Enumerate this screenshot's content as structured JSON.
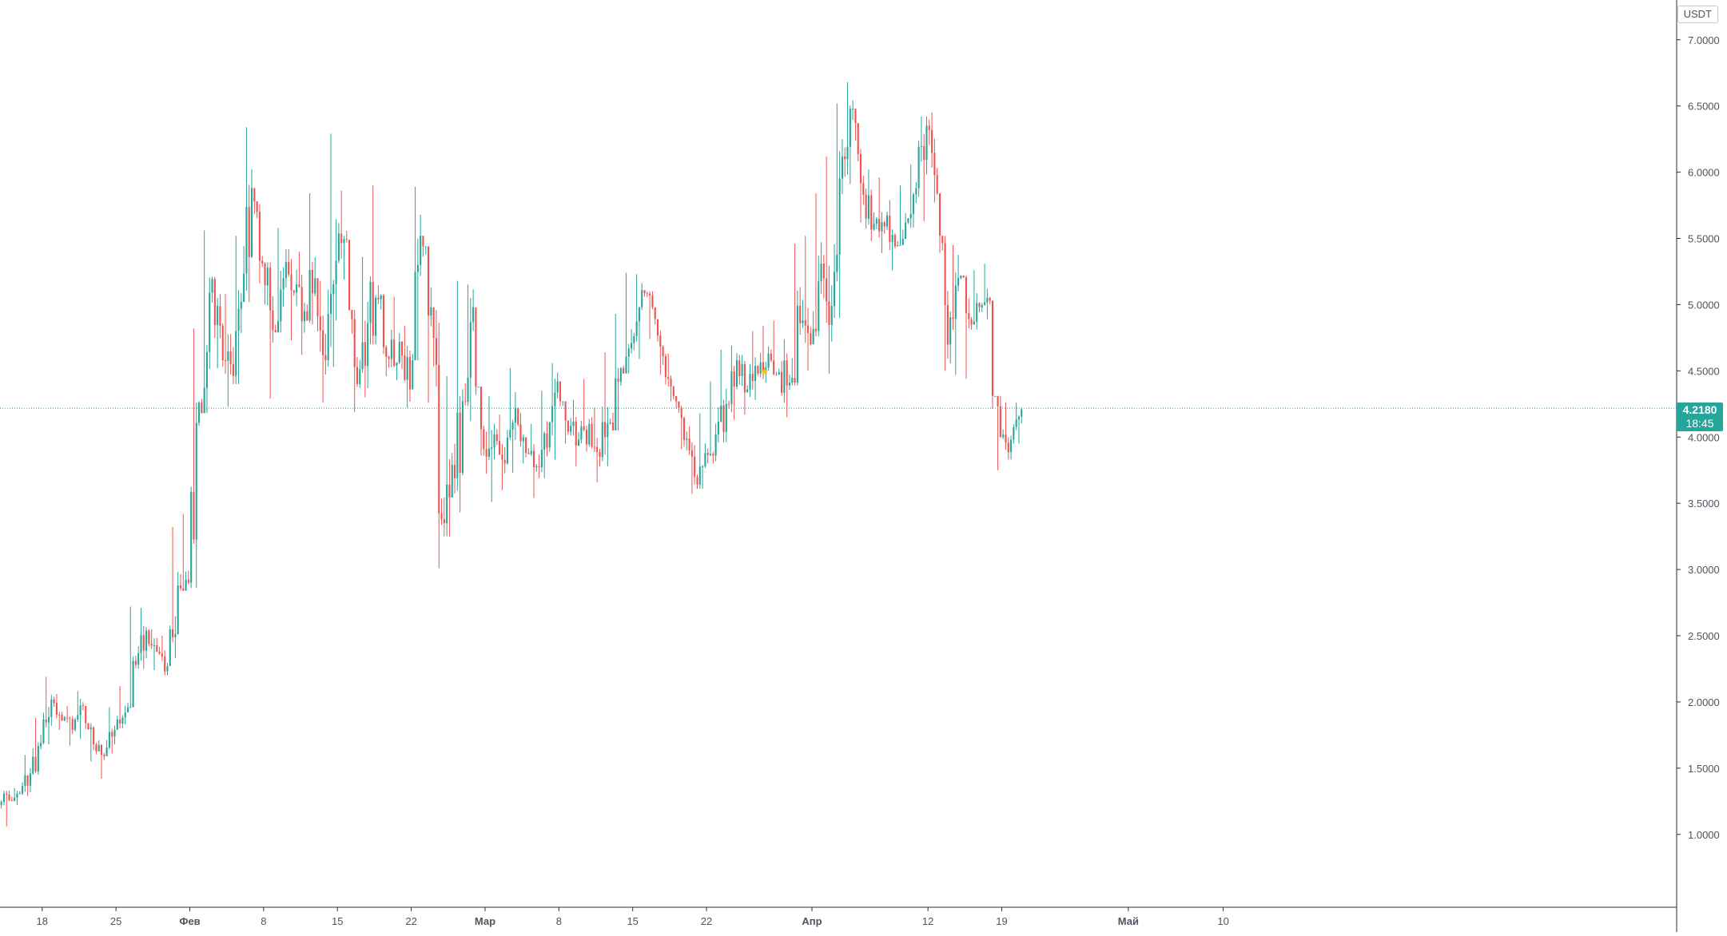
{
  "currency": "USDT",
  "current_price": {
    "label": "4.2180",
    "countdown": "18:45",
    "value": 4.218
  },
  "colors": {
    "up": "#26a69a",
    "down": "#ef5350",
    "axis_text": "#50535e",
    "axis_line": "#2a2e39",
    "price_line": "#26a69a",
    "marker": "#f5c518"
  },
  "chart_data": {
    "type": "candlestick",
    "title": "",
    "xlabel": "",
    "ylabel": "",
    "ylim": [
      0.45,
      7.3
    ],
    "grid": false,
    "y_ticks": [
      "1.0000",
      "1.5000",
      "2.0000",
      "2.5000",
      "3.0000",
      "3.5000",
      "4.0000",
      "4.5000",
      "5.0000",
      "5.5000",
      "6.0000",
      "6.5000",
      "7.0000"
    ],
    "x_ticks": [
      {
        "label": "18",
        "bold": false
      },
      {
        "label": "25",
        "bold": false
      },
      {
        "label": "Фев",
        "bold": true
      },
      {
        "label": "8",
        "bold": false
      },
      {
        "label": "15",
        "bold": false
      },
      {
        "label": "22",
        "bold": false
      },
      {
        "label": "Мар",
        "bold": true
      },
      {
        "label": "8",
        "bold": false
      },
      {
        "label": "15",
        "bold": false
      },
      {
        "label": "22",
        "bold": false
      },
      {
        "label": "Апр",
        "bold": true
      },
      {
        "label": "12",
        "bold": false
      },
      {
        "label": "19",
        "bold": false
      },
      {
        "label": "Май",
        "bold": true
      },
      {
        "label": "10",
        "bold": false
      }
    ],
    "x_tick_day_index": [
      4,
      11,
      18,
      25,
      32,
      39,
      46,
      53,
      60,
      67,
      77,
      88,
      95,
      107,
      116
    ],
    "x_range_days": [
      0,
      159
    ],
    "series": [
      {
        "start": "2021-01-14",
        "day_step": 1,
        "close": [
          1.26,
          1.31,
          1.46,
          1.69,
          2.02,
          1.86,
          1.79,
          1.97,
          1.68,
          1.59,
          1.79,
          1.92,
          2.28,
          2.54,
          2.38,
          2.27,
          2.88,
          2.9,
          4.26,
          5.09,
          4.84,
          4.55,
          5.02,
          5.88,
          5.31,
          4.81,
          5.2,
          5.09,
          4.95,
          5.2,
          4.58,
          5.33,
          5.49,
          4.4,
          4.86,
          5.04,
          4.59,
          4.72,
          4.36,
          5.52,
          4.98,
          3.38,
          3.79,
          4.27,
          4.98,
          3.91,
          4.02,
          3.8,
          4.22,
          3.88,
          3.78,
          3.92,
          4.42,
          4.04,
          3.98,
          4.1,
          3.85,
          4.11,
          4.52,
          4.71,
          5.11,
          4.98,
          4.61,
          4.31,
          3.98,
          3.7,
          3.88,
          4.02,
          4.25,
          4.58,
          4.36,
          4.48,
          4.63,
          4.49,
          4.41,
          4.86,
          4.7,
          5.31,
          4.99,
          6.12,
          6.48,
          5.83,
          5.61,
          5.59,
          5.44,
          5.62,
          5.88,
          6.35,
          5.84,
          4.7,
          5.2,
          4.89,
          4.98,
          5.03,
          4.0,
          3.98,
          4.21
        ],
        "high": [
          1.33,
          1.35,
          1.6,
          1.88,
          2.19,
          2.06,
          1.97,
          2.08,
          1.84,
          1.71,
          1.96,
          2.12,
          2.72,
          2.71,
          2.55,
          2.5,
          3.32,
          3.42,
          4.82,
          5.56,
          5.21,
          5.08,
          5.52,
          6.34,
          5.78,
          5.32,
          5.58,
          5.42,
          5.4,
          5.84,
          5.18,
          6.29,
          5.86,
          4.96,
          5.36,
          5.9,
          5.08,
          5.06,
          4.84,
          5.89,
          5.44,
          4.96,
          4.46,
          5.18,
          5.15,
          4.38,
          4.31,
          4.17,
          4.52,
          4.18,
          4.1,
          4.35,
          4.56,
          4.27,
          4.28,
          4.44,
          4.22,
          4.64,
          4.93,
          5.24,
          5.23,
          5.1,
          4.89,
          4.63,
          4.27,
          4.08,
          4.18,
          4.42,
          4.66,
          4.69,
          4.62,
          4.8,
          4.84,
          4.88,
          4.74,
          5.46,
          5.52,
          5.84,
          6.12,
          6.52,
          6.68,
          6.37,
          6.02,
          5.96,
          5.79,
          5.9,
          6.06,
          6.42,
          6.45,
          5.52,
          5.45,
          5.22,
          5.26,
          5.31,
          4.31,
          4.26,
          4.26
        ],
        "low": [
          1.06,
          1.22,
          1.29,
          1.45,
          1.68,
          1.79,
          1.67,
          1.72,
          1.55,
          1.42,
          1.61,
          1.8,
          1.96,
          2.25,
          2.24,
          2.2,
          2.33,
          2.84,
          2.86,
          4.18,
          4.52,
          4.23,
          4.4,
          5.02,
          5.16,
          4.29,
          4.79,
          4.73,
          4.62,
          4.85,
          4.26,
          4.53,
          5.19,
          4.19,
          4.3,
          4.7,
          4.46,
          4.43,
          4.22,
          4.58,
          4.26,
          3.01,
          3.25,
          3.43,
          4.12,
          3.86,
          3.51,
          3.6,
          3.73,
          3.8,
          3.54,
          3.69,
          3.83,
          3.95,
          3.78,
          3.89,
          3.66,
          3.78,
          4.05,
          4.48,
          4.59,
          4.74,
          4.47,
          4.27,
          3.91,
          3.57,
          3.61,
          3.8,
          3.96,
          4.13,
          4.17,
          4.28,
          4.41,
          4.47,
          4.15,
          4.39,
          4.5,
          4.76,
          4.48,
          4.9,
          5.91,
          5.62,
          5.48,
          5.39,
          5.26,
          5.45,
          5.58,
          5.63,
          5.77,
          4.5,
          4.47,
          4.44,
          4.81,
          4.89,
          3.75,
          3.83,
          3.95
        ]
      }
    ],
    "markers": [
      {
        "day": 72.5,
        "y": 4.5,
        "shape": "star"
      }
    ]
  }
}
